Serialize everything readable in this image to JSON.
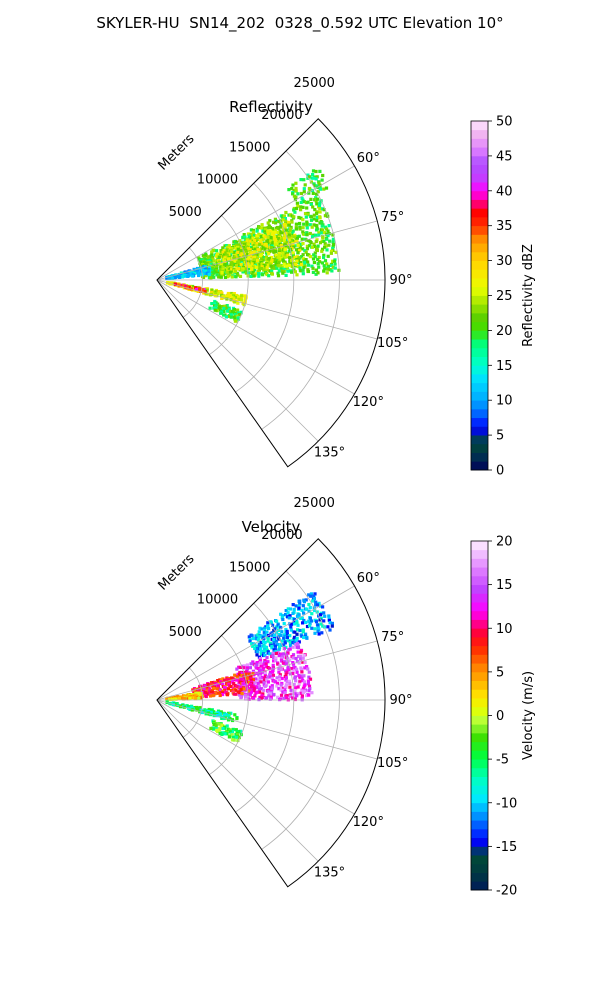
{
  "title": "SKYLER-HU  SN14_202  0328_0.592 UTC Elevation 10°",
  "chart_data": [
    {
      "type": "heatmap",
      "projection": "polar-sector",
      "title": "Reflectivity",
      "radial_label": "Meters",
      "range_ticks": [
        5000,
        10000,
        15000,
        20000,
        25000
      ],
      "range_max": 25000,
      "azimuth_range_deg": [
        45,
        145
      ],
      "azimuth_ticks": [
        60,
        75,
        90,
        105,
        120,
        135
      ],
      "colorbar": {
        "label": "Reflectivity dBZ",
        "min": 0,
        "max": 50,
        "ticks": [
          0,
          5,
          10,
          15,
          20,
          25,
          30,
          35,
          40,
          45,
          50
        ]
      },
      "echo_regions": [
        {
          "az": [
            55,
            62
          ],
          "r": [
            17500,
            21500
          ],
          "value": 20
        },
        {
          "az": [
            62,
            88
          ],
          "r": [
            5000,
            20000
          ],
          "value": 21
        },
        {
          "az": [
            66,
            84
          ],
          "r": [
            7000,
            16000
          ],
          "value": 25
        },
        {
          "az": [
            74,
            84
          ],
          "r": [
            1000,
            6000
          ],
          "value": 12
        },
        {
          "az": [
            100,
            106
          ],
          "r": [
            1000,
            10000
          ],
          "value": 26
        },
        {
          "az": [
            101,
            105
          ],
          "r": [
            2000,
            5500
          ],
          "value": 37
        },
        {
          "az": [
            110,
            118
          ],
          "r": [
            6500,
            10000
          ],
          "value": 20
        }
      ]
    },
    {
      "type": "heatmap",
      "projection": "polar-sector",
      "title": "Velocity",
      "radial_label": "Meters",
      "range_ticks": [
        5000,
        10000,
        15000,
        20000,
        25000
      ],
      "range_max": 25000,
      "azimuth_range_deg": [
        45,
        145
      ],
      "azimuth_ticks": [
        60,
        75,
        90,
        105,
        120,
        135
      ],
      "colorbar": {
        "label": "Velocity (m/s)",
        "min": -20,
        "max": 20,
        "ticks": [
          -20,
          -15,
          -10,
          -5,
          0,
          5,
          10,
          15,
          20
        ]
      },
      "echo_regions": [
        {
          "az": [
            55,
            68
          ],
          "r": [
            12000,
            21000
          ],
          "value": -11
        },
        {
          "az": [
            68,
            90
          ],
          "r": [
            9000,
            17000
          ],
          "value": 14
        },
        {
          "az": [
            72,
            86
          ],
          "r": [
            4000,
            11000
          ],
          "value": 9
        },
        {
          "az": [
            80,
            88
          ],
          "r": [
            1000,
            5000
          ],
          "value": 3
        },
        {
          "az": [
            100,
            106
          ],
          "r": [
            1000,
            9000
          ],
          "value": -6
        },
        {
          "az": [
            110,
            118
          ],
          "r": [
            6500,
            10000
          ],
          "value": -4
        }
      ]
    }
  ]
}
